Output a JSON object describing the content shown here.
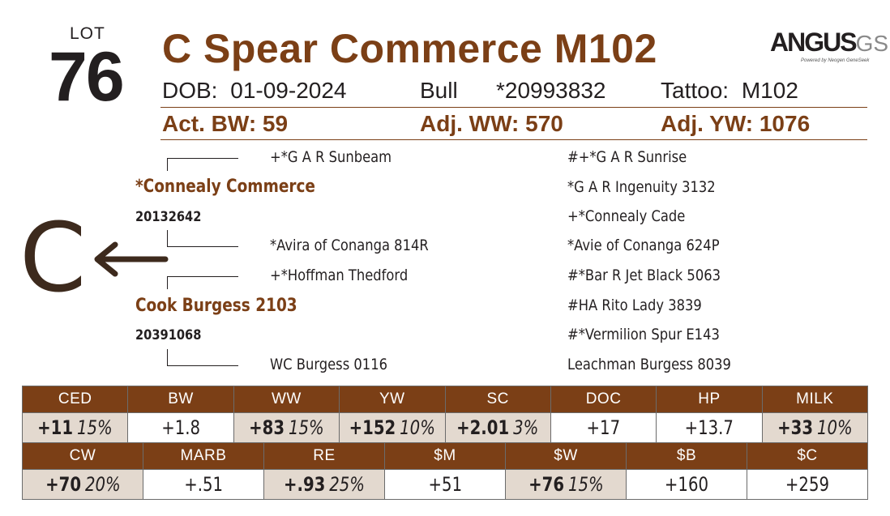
{
  "lot": {
    "label": "LOT",
    "number": "76"
  },
  "animal": {
    "name": "C Spear Commerce M102",
    "dob_label": "DOB:",
    "dob": "01-09-2024",
    "sex": "Bull",
    "registration": "*20993832",
    "tattoo_label": "Tattoo:",
    "tattoo": "M102"
  },
  "logo": {
    "text": "ANGUS",
    "suffix": "GS",
    "tagline": "Powered by Neogen GeneSeek"
  },
  "weights": {
    "bw": "Act. BW: 59",
    "ww": "Adj. WW: 570",
    "yw": "Adj. YW: 1076"
  },
  "pedigree": {
    "sire": {
      "name": "*Connealy Commerce",
      "reg": "20132642"
    },
    "dam": {
      "name": "Cook Burgess 2103",
      "reg": "20391068"
    },
    "sire_sire": "+*G A R Sunbeam",
    "sire_dam": "*Avira of Conanga 814R",
    "dam_sire": "+*Hoffman Thedford",
    "dam_dam": "WC Burgess 0116",
    "far_right": [
      "#+*G A R Sunrise",
      "*G A R Ingenuity 3132",
      "+*Connealy Cade",
      "*Avie of Conanga 624P",
      "#*Bar R Jet Black 5063",
      "#HA Rito Lady 3839",
      "#*Vermilion Spur E143",
      "Leachman Burgess 8039"
    ],
    "symbol": "C"
  },
  "epd_row1": [
    {
      "label": "CED",
      "value": "+11",
      "pct": "15%"
    },
    {
      "label": "BW",
      "value": "+1.8",
      "pct": ""
    },
    {
      "label": "WW",
      "value": "+83",
      "pct": "15%"
    },
    {
      "label": "YW",
      "value": "+152",
      "pct": "10%"
    },
    {
      "label": "SC",
      "value": "+2.01",
      "pct": "3%"
    },
    {
      "label": "DOC",
      "value": "+17",
      "pct": ""
    },
    {
      "label": "HP",
      "value": "+13.7",
      "pct": ""
    },
    {
      "label": "MILK",
      "value": "+33",
      "pct": "10%"
    }
  ],
  "epd_row2": [
    {
      "label": "CW",
      "value": "+70",
      "pct": "20%"
    },
    {
      "label": "MARB",
      "value": "+.51",
      "pct": ""
    },
    {
      "label": "RE",
      "value": "+.93",
      "pct": "25%"
    },
    {
      "label": "$M",
      "value": "+51",
      "pct": ""
    },
    {
      "label": "$W",
      "value": "+76",
      "pct": "15%"
    },
    {
      "label": "$B",
      "value": "+160",
      "pct": ""
    },
    {
      "label": "$C",
      "value": "+259",
      "pct": ""
    }
  ],
  "colors": {
    "brand": "#7b3f16",
    "highlight": "#e3d9cf"
  }
}
